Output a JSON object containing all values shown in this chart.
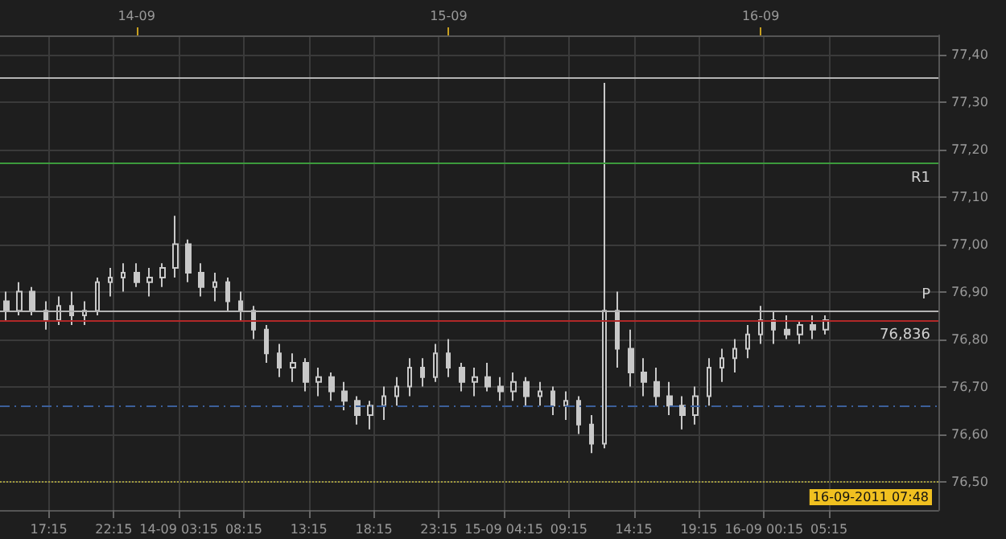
{
  "chart_data": {
    "type": "candlestick",
    "color": "#c8c8c8",
    "x": [
      "2011-09-13T14:00",
      "2011-09-13T15:00",
      "2011-09-13T16:00",
      "2011-09-13T17:00",
      "2011-09-13T18:00",
      "2011-09-13T19:00",
      "2011-09-13T20:00",
      "2011-09-13T21:00",
      "2011-09-13T22:00",
      "2011-09-13T23:00",
      "2011-09-14T00:00",
      "2011-09-14T01:00",
      "2011-09-14T02:00",
      "2011-09-14T03:00",
      "2011-09-14T04:00",
      "2011-09-14T05:00",
      "2011-09-14T06:00",
      "2011-09-14T07:00",
      "2011-09-14T08:00",
      "2011-09-14T09:00",
      "2011-09-14T10:00",
      "2011-09-14T11:00",
      "2011-09-14T12:00",
      "2011-09-14T13:00",
      "2011-09-14T14:00",
      "2011-09-14T15:00",
      "2011-09-14T16:00",
      "2011-09-14T17:00",
      "2011-09-14T18:00",
      "2011-09-14T19:00",
      "2011-09-14T20:00",
      "2011-09-14T21:00",
      "2011-09-14T22:00",
      "2011-09-14T23:00",
      "2011-09-15T00:00",
      "2011-09-15T01:00",
      "2011-09-15T02:00",
      "2011-09-15T03:00",
      "2011-09-15T04:00",
      "2011-09-15T05:00",
      "2011-09-15T06:00",
      "2011-09-15T07:00",
      "2011-09-15T08:00",
      "2011-09-15T09:00",
      "2011-09-15T10:00",
      "2011-09-15T11:00",
      "2011-09-15T12:00",
      "2011-09-15T13:00",
      "2011-09-15T14:00",
      "2011-09-15T15:00",
      "2011-09-15T16:00",
      "2011-09-15T17:00",
      "2011-09-15T18:00",
      "2011-09-15T19:00",
      "2011-09-15T20:00",
      "2011-09-15T21:00",
      "2011-09-15T22:00",
      "2011-09-15T23:00",
      "2011-09-16T00:00",
      "2011-09-16T01:00",
      "2011-09-16T02:00",
      "2011-09-16T03:00",
      "2011-09-16T04:00",
      "2011-09-16T05:00"
    ],
    "ohlc": [
      [
        76.88,
        76.9,
        76.84,
        76.86
      ],
      [
        76.86,
        76.92,
        76.85,
        76.9
      ],
      [
        76.9,
        76.91,
        76.85,
        76.86
      ],
      [
        76.86,
        76.88,
        76.82,
        76.84
      ],
      [
        76.84,
        76.89,
        76.83,
        76.87
      ],
      [
        76.87,
        76.9,
        76.83,
        76.85
      ],
      [
        76.85,
        76.88,
        76.83,
        76.86
      ],
      [
        76.86,
        76.93,
        76.85,
        76.92
      ],
      [
        76.92,
        76.95,
        76.89,
        76.93
      ],
      [
        76.93,
        76.96,
        76.9,
        76.94
      ],
      [
        76.94,
        76.96,
        76.91,
        76.92
      ],
      [
        76.92,
        76.95,
        76.89,
        76.93
      ],
      [
        76.93,
        76.96,
        76.91,
        76.95
      ],
      [
        76.95,
        77.06,
        76.93,
        77.0
      ],
      [
        77.0,
        77.01,
        76.92,
        76.94
      ],
      [
        76.94,
        76.96,
        76.89,
        76.91
      ],
      [
        76.91,
        76.94,
        76.88,
        76.92
      ],
      [
        76.92,
        76.93,
        76.86,
        76.88
      ],
      [
        76.88,
        76.9,
        76.84,
        76.86
      ],
      [
        76.86,
        76.87,
        76.8,
        76.82
      ],
      [
        76.82,
        76.83,
        76.75,
        76.77
      ],
      [
        76.77,
        76.79,
        76.72,
        76.74
      ],
      [
        76.74,
        76.77,
        76.71,
        76.75
      ],
      [
        76.75,
        76.76,
        76.69,
        76.71
      ],
      [
        76.71,
        76.74,
        76.68,
        76.72
      ],
      [
        76.72,
        76.73,
        76.67,
        76.69
      ],
      [
        76.69,
        76.71,
        76.65,
        76.67
      ],
      [
        76.67,
        76.68,
        76.62,
        76.64
      ],
      [
        76.64,
        76.67,
        76.61,
        76.66
      ],
      [
        76.66,
        76.7,
        76.63,
        76.68
      ],
      [
        76.68,
        76.72,
        76.66,
        76.7
      ],
      [
        76.7,
        76.76,
        76.68,
        76.74
      ],
      [
        76.74,
        76.76,
        76.7,
        76.72
      ],
      [
        76.72,
        76.79,
        76.71,
        76.77
      ],
      [
        76.77,
        76.8,
        76.72,
        76.74
      ],
      [
        76.74,
        76.75,
        76.69,
        76.71
      ],
      [
        76.71,
        76.74,
        76.68,
        76.72
      ],
      [
        76.72,
        76.75,
        76.69,
        76.7
      ],
      [
        76.7,
        76.72,
        76.67,
        76.69
      ],
      [
        76.69,
        76.73,
        76.67,
        76.71
      ],
      [
        76.71,
        76.72,
        76.66,
        76.68
      ],
      [
        76.68,
        76.71,
        76.66,
        76.69
      ],
      [
        76.69,
        76.7,
        76.64,
        76.66
      ],
      [
        76.66,
        76.69,
        76.63,
        76.67
      ],
      [
        76.67,
        76.68,
        76.6,
        76.62
      ],
      [
        76.62,
        76.64,
        76.56,
        76.58
      ],
      [
        76.58,
        77.34,
        76.57,
        76.86
      ],
      [
        76.86,
        76.9,
        76.74,
        76.78
      ],
      [
        76.78,
        76.82,
        76.7,
        76.73
      ],
      [
        76.73,
        76.76,
        76.68,
        76.71
      ],
      [
        76.71,
        76.74,
        76.66,
        76.68
      ],
      [
        76.68,
        76.71,
        76.64,
        76.66
      ],
      [
        76.66,
        76.68,
        76.61,
        76.64
      ],
      [
        76.64,
        76.7,
        76.62,
        76.68
      ],
      [
        76.68,
        76.76,
        76.66,
        76.74
      ],
      [
        76.74,
        76.78,
        76.71,
        76.76
      ],
      [
        76.76,
        76.8,
        76.73,
        76.78
      ],
      [
        76.78,
        76.83,
        76.76,
        76.81
      ],
      [
        76.81,
        76.87,
        76.79,
        76.84
      ],
      [
        76.84,
        76.86,
        76.79,
        76.82
      ],
      [
        76.82,
        76.85,
        76.8,
        76.81
      ],
      [
        76.81,
        76.84,
        76.79,
        76.83
      ],
      [
        76.83,
        76.85,
        76.8,
        76.82
      ],
      [
        76.82,
        76.85,
        76.81,
        76.84
      ]
    ],
    "xlim": [
      "2011-09-13T13:30",
      "2011-09-16T13:40"
    ],
    "xticks": [
      {
        "value": "2011-09-13T17:15",
        "label": "17:15"
      },
      {
        "value": "2011-09-13T22:15",
        "label": "22:15"
      },
      {
        "value": "2011-09-14T03:15",
        "label": "14-09 03:15"
      },
      {
        "value": "2011-09-14T08:15",
        "label": "08:15"
      },
      {
        "value": "2011-09-14T13:15",
        "label": "13:15"
      },
      {
        "value": "2011-09-14T18:15",
        "label": "18:15"
      },
      {
        "value": "2011-09-14T23:15",
        "label": "23:15"
      },
      {
        "value": "2011-09-15T04:15",
        "label": "15-09 04:15"
      },
      {
        "value": "2011-09-15T09:15",
        "label": "09:15"
      },
      {
        "value": "2011-09-15T14:15",
        "label": "14:15"
      },
      {
        "value": "2011-09-15T19:15",
        "label": "19:15"
      },
      {
        "value": "2011-09-16T00:15",
        "label": "16-09 00:15"
      },
      {
        "value": "2011-09-16T05:15",
        "label": "05:15"
      }
    ],
    "x2lim": [
      "2011-09-13T13:30",
      "2011-09-16T13:40"
    ],
    "x2ticks": [
      {
        "value": "2011-09-14T00:00",
        "label": "14-09"
      },
      {
        "value": "2011-09-15T00:00",
        "label": "15-09"
      },
      {
        "value": "2011-09-16T00:00",
        "label": "16-09"
      }
    ],
    "ylim": [
      76.44,
      77.44
    ],
    "yticks": [
      {
        "value": 76.5,
        "label": "76,50"
      },
      {
        "value": 76.6,
        "label": "76,60"
      },
      {
        "value": 76.7,
        "label": "76,70"
      },
      {
        "value": 76.8,
        "label": "76,80"
      },
      {
        "value": 76.9,
        "label": "76,90"
      },
      {
        "value": 77.0,
        "label": "77,00"
      },
      {
        "value": 77.1,
        "label": "77,10"
      },
      {
        "value": 77.2,
        "label": "77,20"
      },
      {
        "value": 77.3,
        "label": "77,30"
      },
      {
        "value": 77.4,
        "label": "77,40"
      }
    ],
    "ref_lines": [
      {
        "axis": "y",
        "value": 77.35,
        "color": "#b4b4b4"
      },
      {
        "axis": "y",
        "value": 77.17,
        "label": "R1",
        "color": "#3c9a3c"
      },
      {
        "axis": "y",
        "value": 76.86,
        "label": "P",
        "color": "#b4b4b4"
      },
      {
        "axis": "y",
        "value": 76.836,
        "label": "76,836",
        "color": "#b02828"
      },
      {
        "axis": "y",
        "value": 76.655,
        "color": "#3c5f9a",
        "line_style": "dashed"
      },
      {
        "axis": "y",
        "value": 76.5,
        "color": "#a09a3c",
        "line_style": "dotted"
      }
    ],
    "annotations": [
      "16-09-2011 07:48"
    ],
    "grid": true
  }
}
